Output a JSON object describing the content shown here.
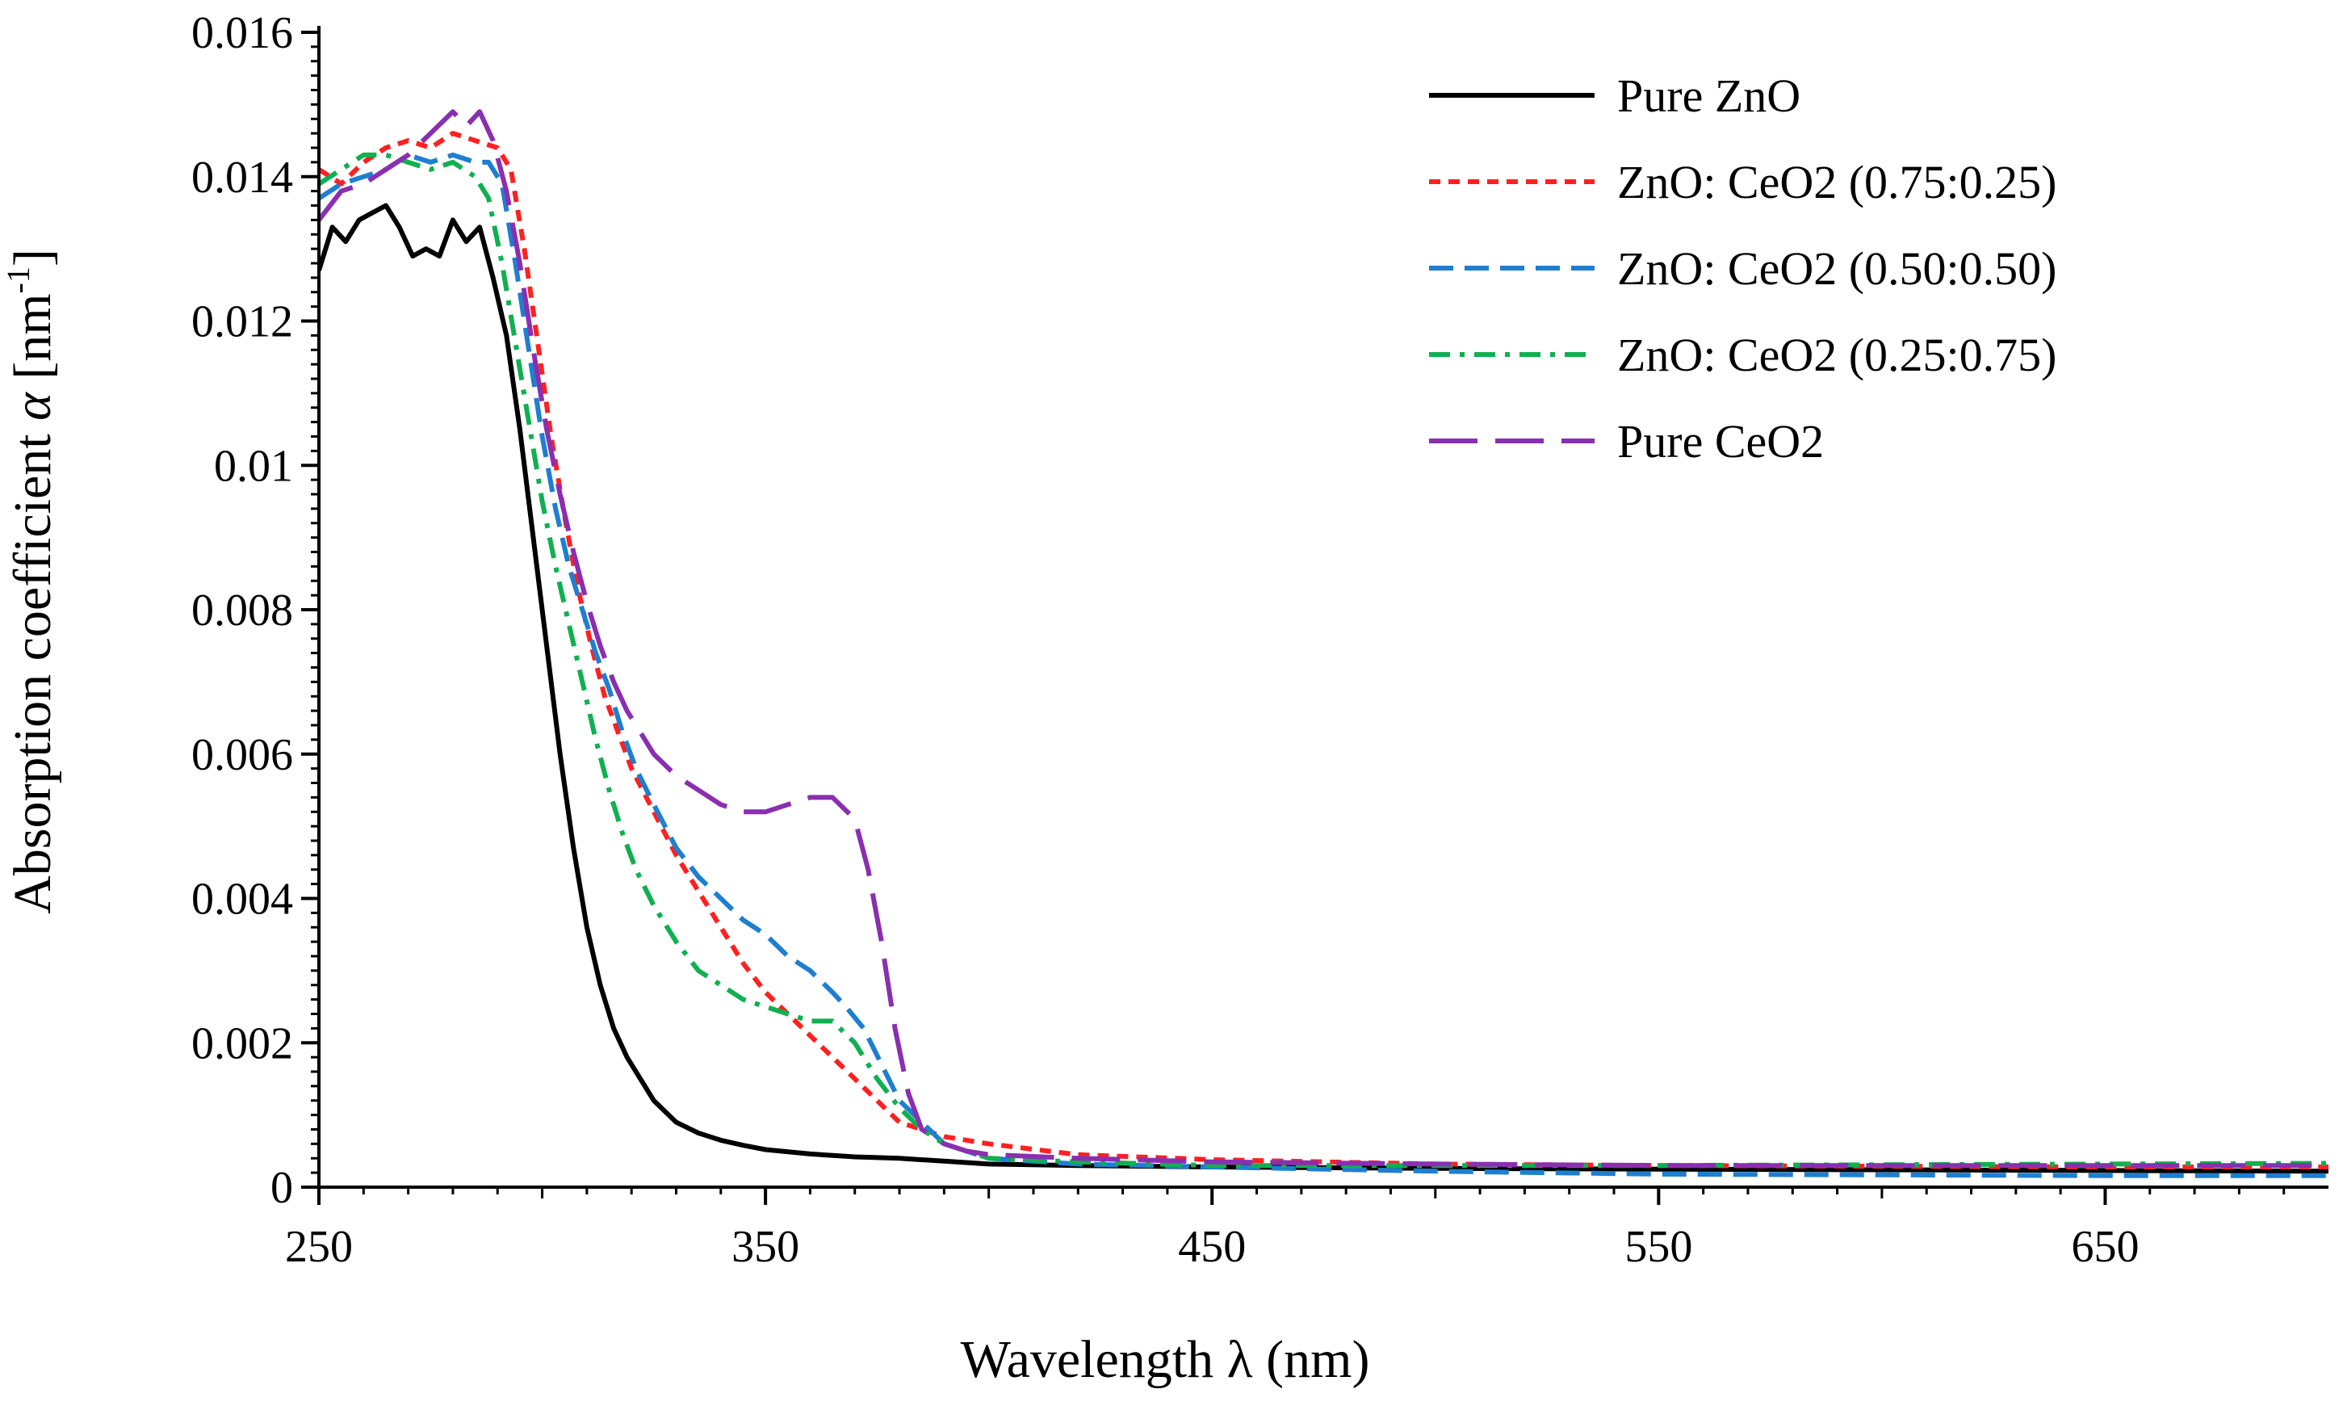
{
  "chart_data": {
    "type": "line",
    "xlabel": "Wavelength λ (nm)",
    "ylabel": {
      "prefix": "Absorption coefficient ",
      "symbol": "α",
      "unit_open": " [nm",
      "unit_sup": "-1",
      "unit_close": "]"
    },
    "xlim": [
      250,
      700
    ],
    "ylim": [
      0,
      0.016
    ],
    "x_ticks": [
      250,
      350,
      450,
      550,
      650
    ],
    "x_tick_labels": [
      "250",
      "350",
      "450",
      "550",
      "650"
    ],
    "y_ticks": [
      0,
      0.002,
      0.004,
      0.006,
      0.008,
      0.01,
      0.012,
      0.014,
      0.016
    ],
    "y_tick_labels": [
      "0",
      "0.002",
      "0.004",
      "0.006",
      "0.008",
      "0.01",
      "0.012",
      "0.014",
      "0.016"
    ],
    "grid": false,
    "legend_position": "top-right",
    "series": [
      {
        "name": "Pure ZnO",
        "color": "#000000",
        "dash": "solid",
        "x": [
          250,
          253,
          256,
          259,
          262,
          265,
          268,
          271,
          274,
          277,
          280,
          283,
          286,
          289,
          292,
          295,
          298,
          301,
          304,
          307,
          310,
          313,
          316,
          319,
          322,
          325,
          330,
          335,
          340,
          345,
          350,
          360,
          370,
          380,
          390,
          400,
          420,
          450,
          500,
          550,
          600,
          650,
          700
        ],
        "y": [
          0.0127,
          0.0133,
          0.0131,
          0.0134,
          0.0135,
          0.0136,
          0.0133,
          0.0129,
          0.013,
          0.0129,
          0.0134,
          0.0131,
          0.0133,
          0.0126,
          0.0118,
          0.0105,
          0.009,
          0.0075,
          0.006,
          0.0047,
          0.0036,
          0.0028,
          0.0022,
          0.0018,
          0.0015,
          0.0012,
          0.0009,
          0.00075,
          0.00065,
          0.00058,
          0.00052,
          0.00046,
          0.00042,
          0.0004,
          0.00036,
          0.00032,
          0.0003,
          0.00028,
          0.00026,
          0.00025,
          0.00024,
          0.00023,
          0.00022
        ]
      },
      {
        "name": "ZnO: CeO2 (0.75:0.25)",
        "color": "#ff2020",
        "dash": "short-dash",
        "x": [
          250,
          255,
          260,
          265,
          270,
          275,
          280,
          285,
          290,
          293,
          296,
          299,
          302,
          305,
          308,
          311,
          314,
          317,
          320,
          325,
          330,
          335,
          340,
          345,
          350,
          355,
          360,
          365,
          370,
          375,
          380,
          385,
          390,
          400,
          420,
          450,
          500,
          550,
          600,
          650,
          700
        ],
        "y": [
          0.0141,
          0.0139,
          0.0142,
          0.0144,
          0.0145,
          0.0144,
          0.0146,
          0.0145,
          0.0144,
          0.0141,
          0.013,
          0.0117,
          0.0104,
          0.0093,
          0.0083,
          0.0075,
          0.0068,
          0.0063,
          0.0058,
          0.0052,
          0.0046,
          0.0041,
          0.0036,
          0.0031,
          0.0027,
          0.0024,
          0.0021,
          0.0018,
          0.0015,
          0.0012,
          0.0009,
          0.0008,
          0.0007,
          0.0006,
          0.00045,
          0.00038,
          0.00032,
          0.0003,
          0.00029,
          0.00028,
          0.00028
        ]
      },
      {
        "name": "ZnO: CeO2 (0.50:0.50)",
        "color": "#1e7fd0",
        "dash": "dash",
        "x": [
          250,
          255,
          260,
          265,
          270,
          275,
          280,
          285,
          288,
          291,
          294,
          297,
          300,
          303,
          306,
          309,
          312,
          315,
          318,
          321,
          325,
          330,
          335,
          340,
          345,
          350,
          355,
          360,
          365,
          368,
          372,
          376,
          380,
          385,
          390,
          400,
          420,
          450,
          500,
          550,
          600,
          650,
          700
        ],
        "y": [
          0.0137,
          0.0139,
          0.014,
          0.0141,
          0.0143,
          0.0142,
          0.0143,
          0.0142,
          0.0142,
          0.0139,
          0.0128,
          0.0116,
          0.0104,
          0.0094,
          0.0086,
          0.008,
          0.0074,
          0.0069,
          0.0063,
          0.0058,
          0.0053,
          0.0047,
          0.0043,
          0.004,
          0.0037,
          0.0035,
          0.0032,
          0.003,
          0.0027,
          0.0025,
          0.0022,
          0.0017,
          0.0012,
          0.0009,
          0.0006,
          0.0004,
          0.00032,
          0.00028,
          0.00022,
          0.00018,
          0.00017,
          0.00016,
          0.00016
        ]
      },
      {
        "name": "ZnO: CeO2 (0.25:0.75)",
        "color": "#10b050",
        "dash": "dash-dot",
        "x": [
          250,
          255,
          260,
          265,
          270,
          275,
          280,
          285,
          288,
          291,
          294,
          297,
          300,
          303,
          306,
          309,
          312,
          315,
          318,
          321,
          325,
          330,
          335,
          340,
          345,
          350,
          355,
          360,
          365,
          370,
          375,
          380,
          385,
          390,
          400,
          420,
          450,
          500,
          550,
          600,
          650,
          700
        ],
        "y": [
          0.0139,
          0.0141,
          0.0143,
          0.0143,
          0.0142,
          0.0141,
          0.0142,
          0.014,
          0.0137,
          0.0128,
          0.0117,
          0.0106,
          0.0095,
          0.0086,
          0.0078,
          0.007,
          0.0062,
          0.0055,
          0.0049,
          0.0044,
          0.0039,
          0.0034,
          0.003,
          0.0028,
          0.0026,
          0.0025,
          0.0024,
          0.0023,
          0.0023,
          0.002,
          0.0015,
          0.0011,
          0.0008,
          0.0006,
          0.0004,
          0.00035,
          0.0003,
          0.0003,
          0.0003,
          0.00031,
          0.00032,
          0.00033
        ]
      },
      {
        "name": "Pure CeO2",
        "color": "#8a2fb0",
        "dash": "long-dash",
        "x": [
          250,
          255,
          260,
          265,
          270,
          275,
          280,
          283,
          286,
          289,
          292,
          295,
          298,
          301,
          304,
          307,
          310,
          313,
          316,
          319,
          322,
          325,
          330,
          335,
          340,
          345,
          350,
          355,
          360,
          365,
          370,
          373,
          376,
          379,
          382,
          385,
          390,
          395,
          400,
          420,
          450,
          500,
          550,
          600,
          650,
          700
        ],
        "y": [
          0.0134,
          0.0138,
          0.0139,
          0.0141,
          0.0143,
          0.0146,
          0.0149,
          0.0147,
          0.0149,
          0.0145,
          0.0138,
          0.0128,
          0.0116,
          0.0105,
          0.0096,
          0.0088,
          0.0081,
          0.0075,
          0.007,
          0.0066,
          0.0063,
          0.006,
          0.0057,
          0.0055,
          0.0053,
          0.0052,
          0.0052,
          0.0053,
          0.0054,
          0.0054,
          0.0051,
          0.0044,
          0.0034,
          0.0022,
          0.0013,
          0.0008,
          0.0006,
          0.0005,
          0.00045,
          0.0004,
          0.00035,
          0.00032,
          0.0003,
          0.0003,
          0.0003,
          0.0003
        ]
      }
    ]
  }
}
